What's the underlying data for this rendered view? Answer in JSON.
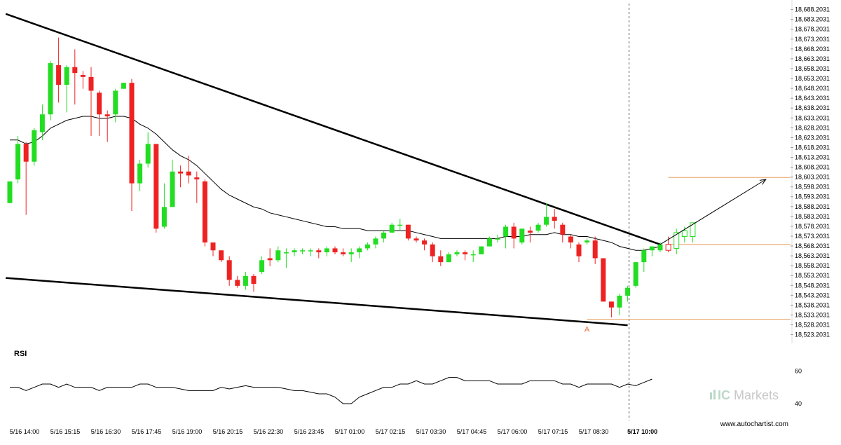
{
  "chart_data": {
    "type": "candlestick",
    "y_axis": {
      "range": [
        18520.2031,
        18690.2031
      ],
      "tick_values": [
        18688.2031,
        18683.2031,
        18678.2031,
        18673.2031,
        18668.2031,
        18663.2031,
        18658.2031,
        18653.2031,
        18648.2031,
        18643.2031,
        18638.2031,
        18633.2031,
        18628.2031,
        18623.2031,
        18618.2031,
        18613.2031,
        18608.2031,
        18603.2031,
        18598.2031,
        18593.2031,
        18588.2031,
        18583.2031,
        18578.2031,
        18573.2031,
        18568.2031,
        18563.2031,
        18558.2031,
        18553.2031,
        18548.2031,
        18543.2031,
        18538.2031,
        18533.2031,
        18528.2031,
        18523.2031
      ],
      "tick_labels": [
        "18,688.2031",
        "18,683.2031",
        "18,678.2031",
        "18,673.2031",
        "18,668.2031",
        "18,663.2031",
        "18,658.2031",
        "18,653.2031",
        "18,648.2031",
        "18,643.2031",
        "18,638.2031",
        "18,633.2031",
        "18,628.2031",
        "18,623.2031",
        "18,618.2031",
        "18,613.2031",
        "18,608.2031",
        "18,603.2031",
        "18,598.2031",
        "18,593.2031",
        "18,588.2031",
        "18,583.2031",
        "18,578.2031",
        "18,573.2031",
        "18,568.2031",
        "18,563.2031",
        "18,558.2031",
        "18,553.2031",
        "18,548.2031",
        "18,543.2031",
        "18,538.2031",
        "18,533.2031",
        "18,528.2031",
        "18,523.2031"
      ]
    },
    "x_axis": {
      "categories": [
        "5/16 14:00",
        "5/16 15:15",
        "5/16 16:30",
        "5/16 17:45",
        "5/16 19:00",
        "5/16 20:15",
        "5/16 22:30",
        "5/16 23:45",
        "5/17 01:00",
        "5/17 02:15",
        "5/17 03:30",
        "5/17 04:45",
        "5/17 06:00",
        "5/17 07:15",
        "5/17 08:30",
        "5/17 10:00"
      ],
      "highlighted": "5/17 10:00",
      "candle_count": 81,
      "label_candle_index": [
        0,
        5,
        10,
        15,
        20,
        25,
        30,
        35,
        40,
        45,
        50,
        55,
        60,
        65,
        70,
        76
      ]
    },
    "candles": [
      {
        "o": 18590,
        "h": 18601,
        "c": 18601,
        "l": 18590
      },
      {
        "o": 18602,
        "h": 18624,
        "c": 18620,
        "l": 18600
      },
      {
        "o": 18620,
        "h": 18621,
        "c": 18611,
        "l": 18584
      },
      {
        "o": 18611,
        "h": 18628,
        "c": 18627,
        "l": 18609
      },
      {
        "o": 18626,
        "h": 18640,
        "c": 18635,
        "l": 18622
      },
      {
        "o": 18635,
        "h": 18662,
        "c": 18661,
        "l": 18632
      },
      {
        "o": 18660,
        "h": 18674,
        "c": 18650,
        "l": 18641
      },
      {
        "o": 18650,
        "h": 18660,
        "c": 18659,
        "l": 18636
      },
      {
        "o": 18659,
        "h": 18668,
        "c": 18656,
        "l": 18640
      },
      {
        "o": 18655,
        "h": 18657,
        "c": 18654,
        "l": 18648
      },
      {
        "o": 18654,
        "h": 18659,
        "c": 18647,
        "l": 18624
      },
      {
        "o": 18646,
        "h": 18647,
        "c": 18635,
        "l": 18624
      },
      {
        "o": 18635,
        "h": 18637,
        "c": 18634,
        "l": 18621
      },
      {
        "o": 18635,
        "h": 18648,
        "c": 18647,
        "l": 18631
      },
      {
        "o": 18648,
        "h": 18651,
        "c": 18651,
        "l": 18648
      },
      {
        "o": 18651,
        "h": 18653,
        "c": 18600,
        "l": 18586
      },
      {
        "o": 18600,
        "h": 18612,
        "c": 18610,
        "l": 18596
      },
      {
        "o": 18610,
        "h": 18626,
        "c": 18620,
        "l": 18608
      },
      {
        "o": 18620,
        "h": 18620,
        "c": 18577,
        "l": 18575
      },
      {
        "o": 18578,
        "h": 18600,
        "c": 18588,
        "l": 18577
      },
      {
        "o": 18588,
        "h": 18612,
        "c": 18606,
        "l": 18588
      },
      {
        "o": 18606,
        "h": 18609,
        "c": 18605,
        "l": 18598
      },
      {
        "o": 18606,
        "h": 18614,
        "c": 18604,
        "l": 18600
      },
      {
        "o": 18603,
        "h": 18606,
        "c": 18602,
        "l": 18590
      },
      {
        "o": 18601,
        "h": 18602,
        "c": 18570,
        "l": 18568
      },
      {
        "o": 18570,
        "h": 18570,
        "c": 18566,
        "l": 18563
      },
      {
        "o": 18566,
        "h": 18566,
        "c": 18561,
        "l": 18560
      },
      {
        "o": 18561,
        "h": 18563,
        "c": 18551,
        "l": 18548
      },
      {
        "o": 18551,
        "h": 18553,
        "c": 18548,
        "l": 18547
      },
      {
        "o": 18548,
        "h": 18555,
        "c": 18553,
        "l": 18546
      },
      {
        "o": 18553,
        "h": 18554,
        "c": 18549,
        "l": 18545
      },
      {
        "o": 18555,
        "h": 18563,
        "c": 18561,
        "l": 18554
      },
      {
        "o": 18562,
        "h": 18567,
        "c": 18561,
        "l": 18558
      },
      {
        "o": 18561,
        "h": 18568,
        "c": 18566,
        "l": 18560
      },
      {
        "o": 18565,
        "h": 18567,
        "c": 18565,
        "l": 18557
      },
      {
        "o": 18565,
        "h": 18567,
        "c": 18566,
        "l": 18563
      },
      {
        "o": 18566,
        "h": 18567,
        "c": 18566,
        "l": 18564
      },
      {
        "o": 18566,
        "h": 18567,
        "c": 18566,
        "l": 18563
      },
      {
        "o": 18566,
        "h": 18567,
        "c": 18565,
        "l": 18562
      },
      {
        "o": 18565,
        "h": 18568,
        "c": 18567,
        "l": 18563
      },
      {
        "o": 18567,
        "h": 18568,
        "c": 18565,
        "l": 18564
      },
      {
        "o": 18565,
        "h": 18567,
        "c": 18564,
        "l": 18563
      },
      {
        "o": 18564,
        "h": 18567,
        "c": 18565,
        "l": 18560
      },
      {
        "o": 18565,
        "h": 18568,
        "c": 18567,
        "l": 18562
      },
      {
        "o": 18567,
        "h": 18570,
        "c": 18569,
        "l": 18566
      },
      {
        "o": 18569,
        "h": 18573,
        "c": 18572,
        "l": 18567
      },
      {
        "o": 18572,
        "h": 18576,
        "c": 18575,
        "l": 18570
      },
      {
        "o": 18575,
        "h": 18580,
        "c": 18579,
        "l": 18575
      },
      {
        "o": 18579,
        "h": 18582,
        "c": 18579,
        "l": 18576
      },
      {
        "o": 18579,
        "h": 18579,
        "c": 18572,
        "l": 18571
      },
      {
        "o": 18572,
        "h": 18573,
        "c": 18571,
        "l": 18570
      },
      {
        "o": 18571,
        "h": 18572,
        "c": 18569,
        "l": 18566
      },
      {
        "o": 18569,
        "h": 18570,
        "c": 18563,
        "l": 18560
      },
      {
        "o": 18563,
        "h": 18566,
        "c": 18560,
        "l": 18558
      },
      {
        "o": 18560,
        "h": 18565,
        "c": 18564,
        "l": 18560
      },
      {
        "o": 18564,
        "h": 18566,
        "c": 18565,
        "l": 18563
      },
      {
        "o": 18565,
        "h": 18566,
        "c": 18564,
        "l": 18561
      },
      {
        "o": 18564,
        "h": 18566,
        "c": 18564,
        "l": 18560
      },
      {
        "o": 18564,
        "h": 18568,
        "c": 18568,
        "l": 18564
      },
      {
        "o": 18568,
        "h": 18573,
        "c": 18572,
        "l": 18568
      },
      {
        "o": 18572,
        "h": 18574,
        "c": 18572,
        "l": 18570
      },
      {
        "o": 18573,
        "h": 18579,
        "c": 18578,
        "l": 18567
      },
      {
        "o": 18578,
        "h": 18580,
        "c": 18572,
        "l": 18567
      },
      {
        "o": 18570,
        "h": 18577,
        "c": 18577,
        "l": 18569
      },
      {
        "o": 18576,
        "h": 18578,
        "c": 18575,
        "l": 18570
      },
      {
        "o": 18576,
        "h": 18580,
        "c": 18579,
        "l": 18575
      },
      {
        "o": 18579,
        "h": 18590,
        "c": 18583,
        "l": 18578
      },
      {
        "o": 18583,
        "h": 18587,
        "c": 18581,
        "l": 18577
      },
      {
        "o": 18579,
        "h": 18580,
        "c": 18574,
        "l": 18570
      },
      {
        "o": 18573,
        "h": 18574,
        "c": 18570,
        "l": 18567
      },
      {
        "o": 18569,
        "h": 18570,
        "c": 18563,
        "l": 18560
      },
      {
        "o": 18570,
        "h": 18572,
        "c": 18571,
        "l": 18569
      },
      {
        "o": 18571,
        "h": 18573,
        "c": 18562,
        "l": 18559
      },
      {
        "o": 18562,
        "h": 18562,
        "c": 18540,
        "l": 18540
      },
      {
        "o": 18540,
        "h": 18540,
        "c": 18537,
        "l": 18532
      },
      {
        "o": 18537,
        "h": 18544,
        "c": 18543,
        "l": 18533
      },
      {
        "o": 18543,
        "h": 18548,
        "c": 18547,
        "l": 18540
      },
      {
        "o": 18548,
        "h": 18560,
        "c": 18560,
        "l": 18547
      },
      {
        "o": 18560,
        "h": 18567,
        "c": 18566,
        "l": 18555
      },
      {
        "o": 18566,
        "h": 18568,
        "c": 18568,
        "l": 18563
      },
      {
        "o": 18566,
        "h": 18570,
        "c": 18569,
        "l": 18565
      }
    ],
    "projection_candles": [
      {
        "o": 18569,
        "h": 18573,
        "c": 18566,
        "l": 18565
      },
      {
        "o": 18567,
        "h": 18577,
        "c": 18575,
        "l": 18564
      },
      {
        "o": 18573,
        "h": 18578,
        "c": 18576,
        "l": 18570
      },
      {
        "o": 18573,
        "h": 18580,
        "c": 18580,
        "l": 18570
      }
    ],
    "moving_average": [
      18622,
      18622,
      18620,
      18621,
      18624,
      18628,
      18630,
      18632,
      18633,
      18634,
      18634,
      18633,
      18633,
      18634,
      18634,
      18633,
      18630,
      18628,
      18625,
      18621,
      18617,
      18614,
      18612,
      18609,
      18605,
      18601,
      18597,
      18594,
      18592,
      18590,
      18588,
      18587,
      18585,
      18584,
      18583,
      18582,
      18581,
      18580,
      18579,
      18578,
      18578,
      18577,
      18577,
      18577,
      18576,
      18576,
      18576,
      18576,
      18576,
      18576,
      18575,
      18574,
      18573,
      18572,
      18572,
      18572,
      18572,
      18572,
      18572,
      18572,
      18572,
      18573,
      18573,
      18573,
      18574,
      18574,
      18574,
      18575,
      18574,
      18574,
      18573,
      18573,
      18572,
      18571,
      18570,
      18568,
      18567,
      18566,
      18566,
      18567,
      18568
    ],
    "trend_lines": [
      {
        "name": "resistance",
        "from": {
          "i": -0.5,
          "v": 18686
        },
        "to": {
          "i": 80,
          "v": 18569
        }
      },
      {
        "name": "support",
        "from": {
          "i": -0.5,
          "v": 18552
        },
        "to": {
          "i": 76,
          "v": 18528
        }
      }
    ],
    "levels": [
      {
        "value": 18603,
        "from_i": 81
      },
      {
        "value": 18569,
        "from_i": 81
      },
      {
        "value": 18531,
        "from_i": 71
      }
    ],
    "forecast_arrow": {
      "from": {
        "i": 80,
        "v": 18569
      },
      "to": {
        "i": 93,
        "v": 18602
      }
    },
    "current_time_index": 76,
    "annotation": {
      "text": "A",
      "i": 71,
      "v": 18529
    },
    "rsi": {
      "label": "RSI",
      "ticks": [
        60,
        40
      ],
      "values": [
        50,
        50,
        48,
        50,
        52,
        52,
        50,
        52,
        50,
        50,
        50,
        48,
        50,
        50,
        50,
        50,
        52,
        52,
        50,
        50,
        50,
        49,
        48,
        48,
        48,
        48,
        50,
        49,
        50,
        51,
        50,
        50,
        50,
        50,
        49,
        48,
        48,
        47,
        46,
        46,
        44,
        40,
        40,
        44,
        46,
        48,
        50,
        50,
        52,
        52,
        54,
        52,
        52,
        54,
        56,
        56,
        54,
        54,
        54,
        54,
        52,
        52,
        52,
        52,
        54,
        54,
        54,
        54,
        52,
        52,
        50,
        52,
        52,
        52,
        52,
        50,
        52,
        51,
        53,
        55
      ],
      "range": [
        34,
        64
      ]
    }
  },
  "brand": {
    "name": "ICMarkets",
    "ic": "IC",
    "markets": "Markets"
  },
  "footer": {
    "url": "www.autochartist.com"
  },
  "colors": {
    "bull": "#22dd22",
    "bear": "#ee2222",
    "level": "#e8a060",
    "line": "#000000",
    "grid": "#999999"
  }
}
